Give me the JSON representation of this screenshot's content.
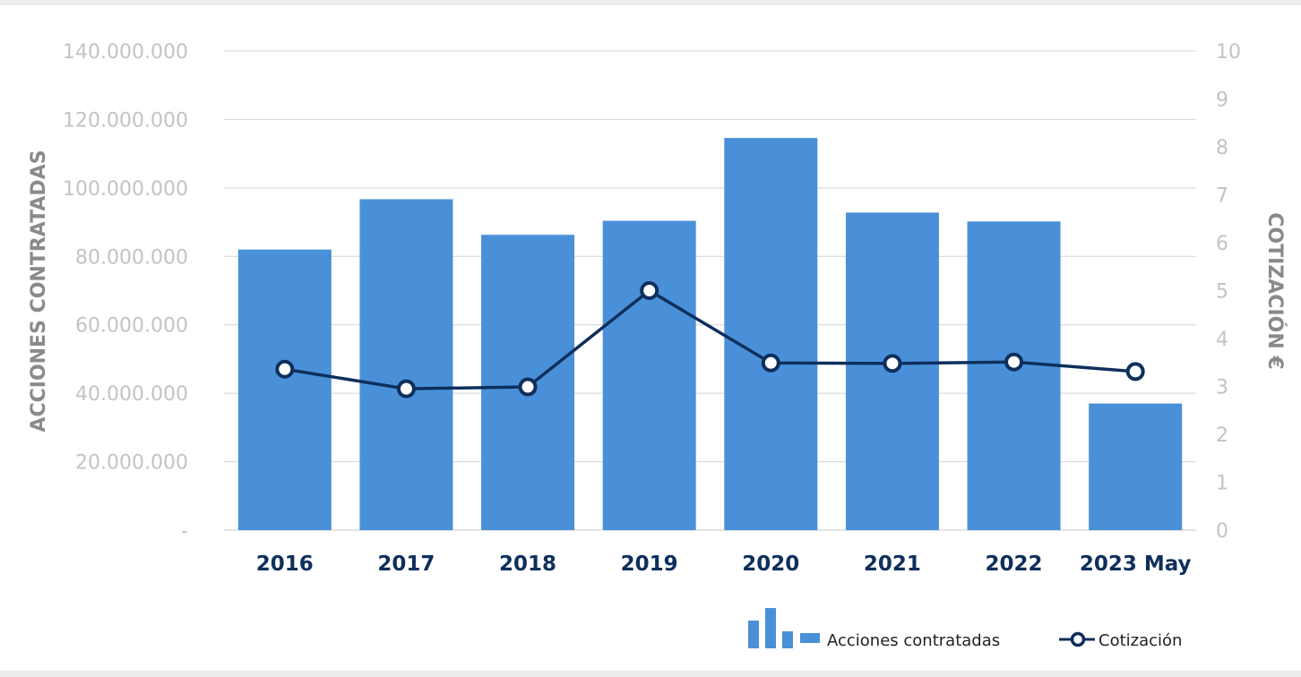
{
  "colors": {
    "bar": "#4a90d9",
    "line": "#0e2f5c",
    "grid": "#d4d4d4",
    "tick": "#c3c3c3",
    "axis_title": "#8a8a8a"
  },
  "chart_data": {
    "type": "bar",
    "categories": [
      "2016",
      "2017",
      "2018",
      "2019",
      "2020",
      "2021",
      "2022",
      "2023 May"
    ],
    "series": [
      {
        "name": "Acciones contratadas",
        "type": "bar",
        "axis": "left",
        "values": [
          82000000,
          96700000,
          86300000,
          90400000,
          114600000,
          92800000,
          90200000,
          37000000
        ]
      },
      {
        "name": "Cotización",
        "type": "line",
        "axis": "right",
        "values": [
          3.36,
          2.95,
          2.99,
          5.0,
          3.49,
          3.48,
          3.51,
          3.31
        ]
      }
    ],
    "ylabel": "ACCIONES CONTRATADAS",
    "y2label": "COTIZACIÓN €",
    "ylim": [
      0,
      140000000
    ],
    "y2lim": [
      0,
      10
    ],
    "yticks": [
      "-",
      "20.000.000",
      "40.000.000",
      "60.000.000",
      "80.000.000",
      "100.000.000",
      "120.000.000",
      "140.000.000"
    ],
    "y2ticks": [
      "0",
      "1",
      "2",
      "3",
      "4",
      "5",
      "6",
      "7",
      "8",
      "9",
      "10"
    ],
    "grid": true,
    "legend_position": "bottom-right"
  }
}
